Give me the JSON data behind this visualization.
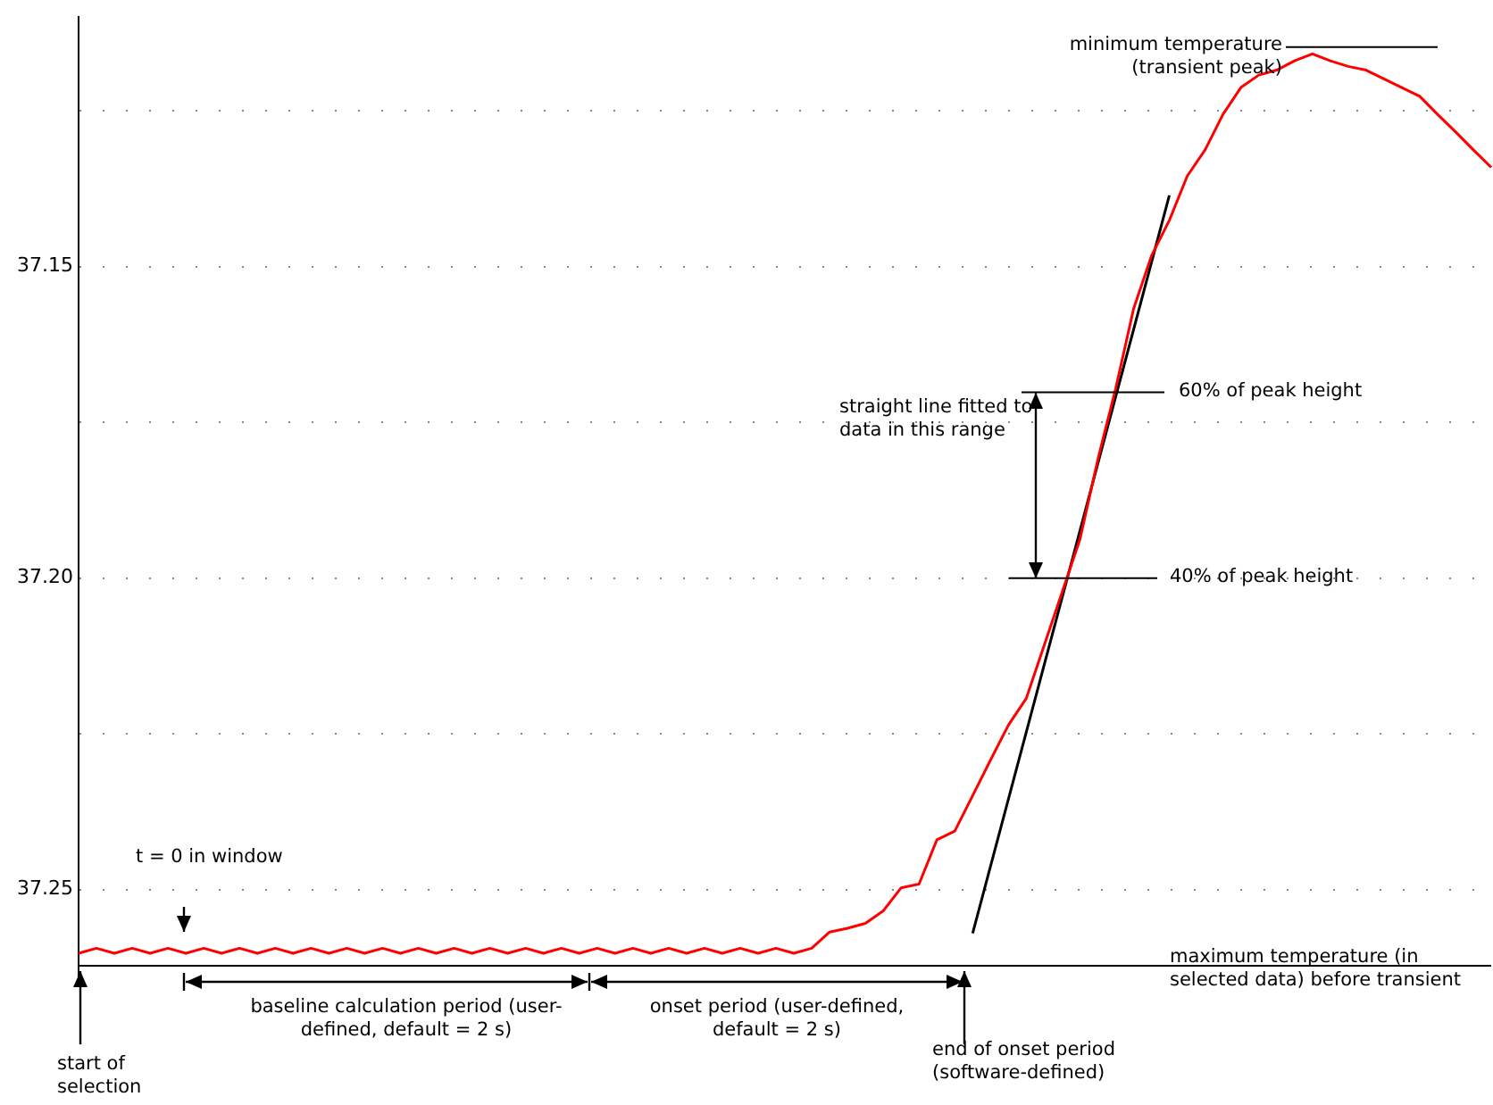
{
  "chart_data": {
    "type": "line",
    "categories": [
      null,
      null,
      null,
      null,
      null,
      null,
      null,
      null,
      null,
      null,
      null,
      null,
      null,
      null,
      null,
      null,
      null,
      null,
      null,
      null,
      null,
      null,
      null,
      null,
      null,
      null,
      null,
      null,
      null,
      null,
      null,
      null,
      null,
      null,
      null,
      null,
      null,
      null,
      null,
      null,
      null,
      null,
      null,
      null,
      null,
      null,
      null,
      null,
      null,
      null,
      null,
      null,
      null,
      null,
      null,
      null,
      null,
      null,
      null,
      null,
      null,
      null,
      null,
      null,
      null,
      null,
      null,
      null,
      null,
      null,
      null,
      null,
      null,
      null,
      null,
      null,
      null,
      null,
      null,
      null
    ],
    "series": [
      {
        "color": "#ff0000",
        "values": [
          37.2602,
          37.2594,
          37.2602,
          37.2594,
          37.2602,
          37.2594,
          37.2602,
          37.2594,
          37.2602,
          37.2594,
          37.2602,
          37.2594,
          37.2602,
          37.2594,
          37.2602,
          37.2594,
          37.2602,
          37.2594,
          37.2602,
          37.2594,
          37.2602,
          37.2594,
          37.2602,
          37.2594,
          37.2602,
          37.2594,
          37.2602,
          37.2594,
          37.2602,
          37.2594,
          37.2602,
          37.2594,
          37.2602,
          37.2594,
          37.2602,
          37.2594,
          37.2602,
          37.2594,
          37.2602,
          37.2594,
          37.2602,
          37.2594,
          37.2568,
          37.2562,
          37.2554,
          37.2534,
          37.2497,
          37.2491,
          37.242,
          37.2406,
          37.2349,
          37.2292,
          37.2236,
          37.2193,
          37.2108,
          37.2023,
          37.1938,
          37.181,
          37.1696,
          37.1568,
          37.1483,
          37.1426,
          37.1355,
          37.1313,
          37.1256,
          37.1213,
          37.1193,
          37.1185,
          37.117,
          37.1159,
          37.117,
          37.1179,
          37.1185,
          37.1199,
          37.1213,
          37.1227,
          37.1256,
          37.1284,
          37.1313,
          37.1341
        ]
      },
      {
        "color": "#000000",
        "values": [
          null,
          null,
          null,
          null,
          null,
          null,
          null,
          null,
          null,
          null,
          null,
          null,
          null,
          null,
          null,
          null,
          null,
          null,
          null,
          null,
          null,
          null,
          null,
          null,
          null,
          null,
          null,
          null,
          null,
          null,
          null,
          null,
          null,
          null,
          null,
          null,
          null,
          null,
          null,
          null,
          null,
          null,
          null,
          null,
          null,
          null,
          null,
          null,
          null,
          null,
          37.257,
          null,
          null,
          null,
          null,
          null,
          null,
          null,
          null,
          null,
          null,
          37.1386,
          null,
          null,
          null,
          null,
          null,
          null,
          null,
          null,
          null,
          null,
          null,
          null,
          null,
          null,
          null,
          null,
          null,
          null
        ]
      }
    ],
    "ylim": [
      37.2645,
      37.11
    ],
    "yticks": [
      {
        "value": 37.125,
        "label": null
      },
      {
        "value": 37.15,
        "label": "37.15"
      },
      {
        "value": 37.175,
        "label": null
      },
      {
        "value": 37.2,
        "label": "37.20"
      },
      {
        "value": 37.225,
        "label": null
      },
      {
        "value": 37.25,
        "label": "37.25"
      }
    ],
    "tick_labels": "y",
    "grid": "y",
    "legend": false,
    "marker": "none",
    "line_style": "solid",
    "ref_lines": [
      {
        "axis": "y",
        "value": 37.1148,
        "label": "minimum temperature (transient peak)",
        "color": "#000000"
      },
      {
        "axis": "y",
        "value": 37.1702,
        "label": "60% of peak height",
        "color": "#000000"
      },
      {
        "axis": "y",
        "value": 37.2,
        "label": "40% of peak height",
        "color": "#000000"
      },
      {
        "axis": "y",
        "value": 37.2622,
        "label": "maximum temperature (in selected data) before transient",
        "color": "#000000"
      }
    ],
    "annotations": [
      "straight line fitted to data in this range",
      "t = 0 in window",
      "baseline calculation period (user-defined, default = 2 s)",
      "onset period (user-defined, default = 2 s)",
      "start of selection",
      "end of onset period (software-defined)"
    ]
  }
}
